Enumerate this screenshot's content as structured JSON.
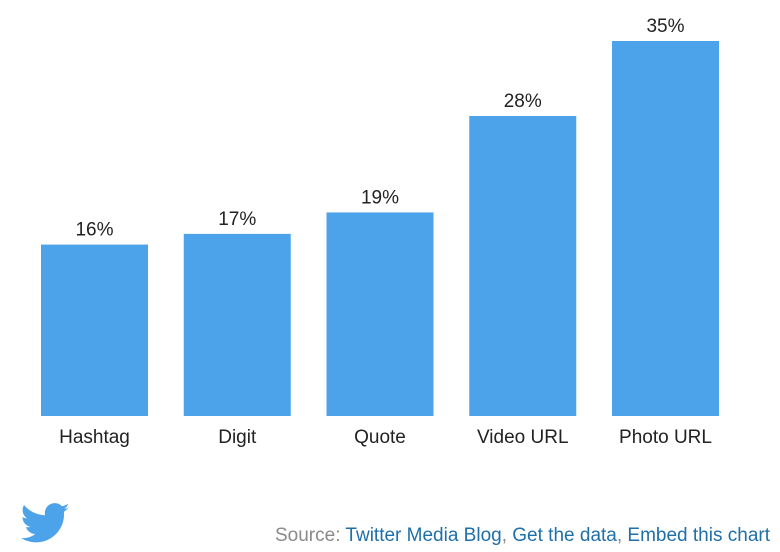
{
  "chart_data": {
    "type": "bar",
    "categories": [
      "Hashtag",
      "Digit",
      "Quote",
      "Video URL",
      "Photo URL"
    ],
    "values": [
      16,
      17,
      19,
      28,
      35
    ],
    "value_labels": [
      "16%",
      "17%",
      "19%",
      "28%",
      "35%"
    ],
    "color": "#4da3ea"
  },
  "footer": {
    "source_label": "Source:",
    "separator": ",",
    "links": [
      "Twitter Media Blog",
      "Get the data",
      "Embed this chart"
    ]
  }
}
